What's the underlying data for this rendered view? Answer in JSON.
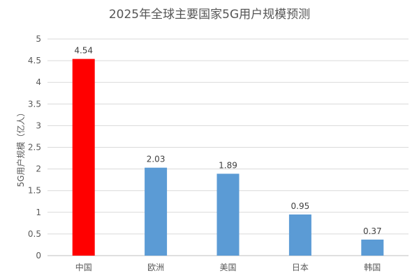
{
  "chart_data": {
    "type": "bar",
    "title": "2025年全球主要国家5G用户规模预测",
    "xlabel": "",
    "ylabel": "5G用户规模（亿人）",
    "categories": [
      "中国",
      "欧洲",
      "美国",
      "日本",
      "韩国"
    ],
    "values": [
      4.54,
      2.03,
      1.89,
      0.95,
      0.37
    ],
    "data_labels": [
      "4.54",
      "2.03",
      "1.89",
      "0.95",
      "0.37"
    ],
    "yticks": [
      "0",
      "0.5",
      "1",
      "1.5",
      "2",
      "2.5",
      "3",
      "3.5",
      "4",
      "4.5",
      "5"
    ],
    "ylim": [
      0,
      5
    ],
    "grid": true,
    "legend": "none",
    "colors": {
      "highlight": "#ff0000",
      "default": "#5b9bd5"
    },
    "highlight_index": 0
  }
}
